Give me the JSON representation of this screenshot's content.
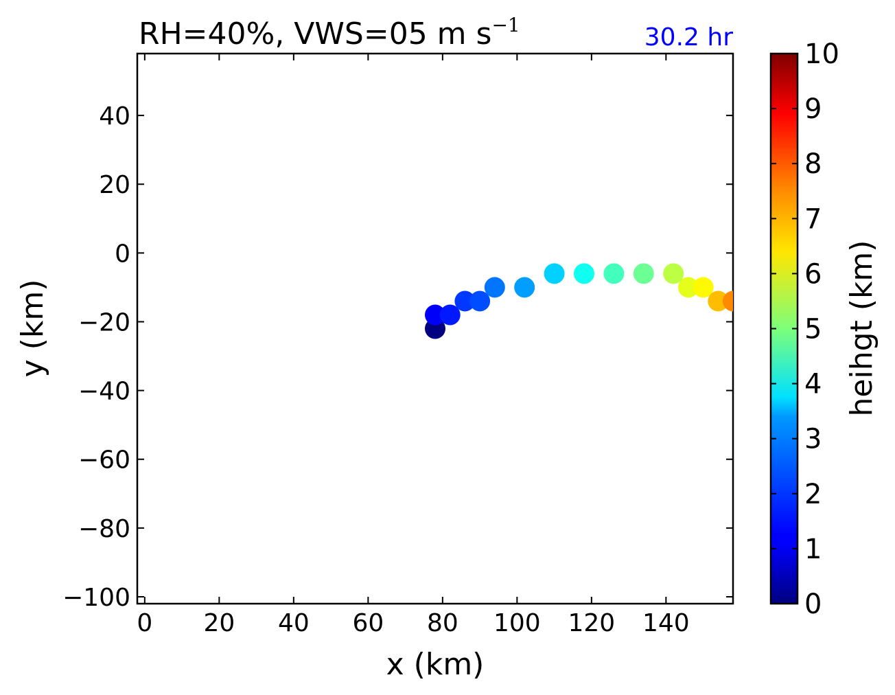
{
  "chart_data": {
    "type": "scatter",
    "title": "RH=40%, VWS=05 m s",
    "title_superscript": "−1",
    "time_label": "30.2 hr",
    "time_label_color": "#0000ff",
    "xlabel": "x (km)",
    "ylabel": "y (km)",
    "xlim": [
      -2,
      158
    ],
    "ylim": [
      -102,
      58
    ],
    "xticks": [
      0,
      20,
      40,
      60,
      80,
      100,
      120,
      140
    ],
    "xtick_labels": [
      "0",
      "20",
      "40",
      "60",
      "80",
      "100",
      "120",
      "140"
    ],
    "yticks": [
      40,
      20,
      0,
      -20,
      -40,
      -60,
      -80,
      -100
    ],
    "ytick_labels": [
      "40",
      "20",
      "0",
      "−20",
      "−40",
      "−60",
      "−80",
      "−100"
    ],
    "grid": false,
    "colormap": "jet",
    "colorbar": {
      "label": "heihgt (km)",
      "range": [
        0,
        10
      ],
      "ticks": [
        0,
        1,
        2,
        3,
        4,
        5,
        6,
        7,
        8,
        9,
        10
      ],
      "tick_labels": [
        "0",
        "1",
        "2",
        "3",
        "4",
        "5",
        "6",
        "7",
        "8",
        "9",
        "10"
      ]
    },
    "points": [
      {
        "x": 78,
        "y": -22,
        "height": 0.0
      },
      {
        "x": 78,
        "y": -18,
        "height": 1.2
      },
      {
        "x": 82,
        "y": -18,
        "height": 1.5
      },
      {
        "x": 86,
        "y": -14,
        "height": 1.8
      },
      {
        "x": 90,
        "y": -14,
        "height": 2.0
      },
      {
        "x": 94,
        "y": -10,
        "height": 2.4
      },
      {
        "x": 102,
        "y": -10,
        "height": 2.8
      },
      {
        "x": 110,
        "y": -6,
        "height": 3.3
      },
      {
        "x": 118,
        "y": -6,
        "height": 3.9
      },
      {
        "x": 126,
        "y": -6,
        "height": 4.4
      },
      {
        "x": 134,
        "y": -6,
        "height": 4.8
      },
      {
        "x": 142,
        "y": -6,
        "height": 5.6
      },
      {
        "x": 146,
        "y": -10,
        "height": 6.0
      },
      {
        "x": 150,
        "y": -10,
        "height": 6.3
      },
      {
        "x": 154,
        "y": -14,
        "height": 6.9
      },
      {
        "x": 158,
        "y": -14,
        "height": 7.4
      }
    ]
  }
}
